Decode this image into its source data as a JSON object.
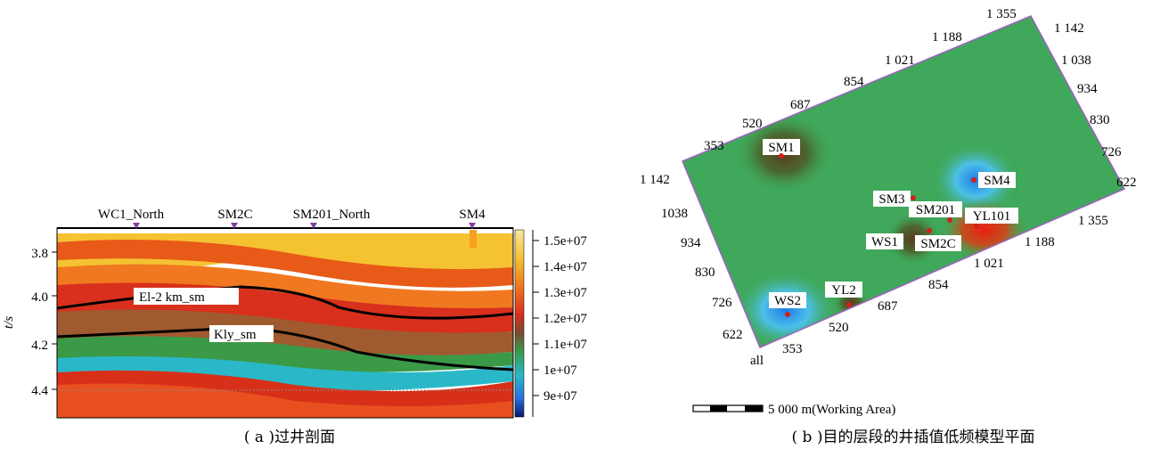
{
  "left_panel": {
    "wells": [
      "WC1_North",
      "SM2C",
      "SM201_North",
      "SM4"
    ],
    "yaxis_label": "t/s",
    "yticks": [
      "3.8",
      "4.0",
      "4.2",
      "4.4"
    ],
    "horizons": [
      "El-2 km_sm",
      "Kly_sm"
    ],
    "colorbar_ticks": [
      "1.5e+07",
      "1.4e+07",
      "1.3e+07",
      "1.2e+07",
      "1.1e+07",
      "1e+07",
      "9e+07"
    ],
    "caption": "( a )过井剖面"
  },
  "right_panel": {
    "top_edge_labels": [
      "353",
      "520",
      "687",
      "854",
      "1 021",
      "1 188",
      "1 355"
    ],
    "right_edge_labels": [
      "1 142",
      "1 038",
      "934",
      "830",
      "726",
      "622"
    ],
    "left_edge_labels": [
      "1 142",
      "1038",
      "934",
      "830",
      "726",
      "622"
    ],
    "bottom_edge_labels": [
      "353",
      "520",
      "687",
      "854",
      "1 021",
      "1 188",
      "1 355"
    ],
    "corner_label": "all",
    "wells": [
      "SM1",
      "SM4",
      "SM3",
      "SM201",
      "YL101",
      "WS1",
      "SM2C",
      "WS2",
      "YL2"
    ],
    "scale_label": "5 000 m(Working Area)",
    "caption": "( b )目的层段的井插值低频模型平面"
  },
  "colors": {
    "map_green": "#3fa85a",
    "low_blue": "#2a8fe0",
    "high_red": "#e02a10",
    "border_purple": "#a060c0",
    "well_dot": "#d0201a"
  }
}
